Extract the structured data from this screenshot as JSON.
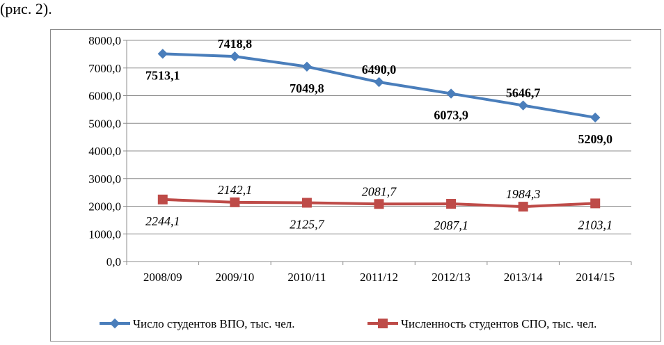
{
  "caption": "(рис. 2).",
  "chart_data": {
    "type": "line",
    "categories": [
      "2008/09",
      "2009/10",
      "2010/11",
      "2011/12",
      "2012/13",
      "2013/14",
      "2014/15"
    ],
    "ylim": [
      0,
      8000
    ],
    "yticks": [
      "0,0",
      "1000,0",
      "2000,0",
      "3000,0",
      "4000,0",
      "5000,0",
      "6000,0",
      "7000,0",
      "8000,0"
    ],
    "grid": true,
    "legend_position": "bottom",
    "series": [
      {
        "name": "Число студентов ВПО, тыс. чел.",
        "color": "#4a7ebb",
        "marker": "diamond",
        "values": [
          7513.1,
          7418.8,
          7049.8,
          6490.0,
          6073.9,
          5646.7,
          5209.0
        ],
        "labels": [
          "7513,1",
          "7418,8",
          "7049,8",
          "6490,0",
          "6073,9",
          "5646,7",
          "5209,0"
        ],
        "label_style": "bold",
        "label_pos": [
          "below",
          "above",
          "below",
          "above",
          "below",
          "above",
          "below"
        ]
      },
      {
        "name": "Численность студентов СПО, тыс. чел.",
        "color": "#be4b48",
        "marker": "square",
        "values": [
          2244.1,
          2142.1,
          2125.7,
          2081.7,
          2087.1,
          1984.3,
          2103.1
        ],
        "labels": [
          "2244,1",
          "2142,1",
          "2125,7",
          "2081,7",
          "2087,1",
          "1984,3",
          "2103,1"
        ],
        "label_style": "italic",
        "label_pos": [
          "below",
          "above",
          "below",
          "above",
          "below",
          "above",
          "below"
        ]
      }
    ]
  }
}
